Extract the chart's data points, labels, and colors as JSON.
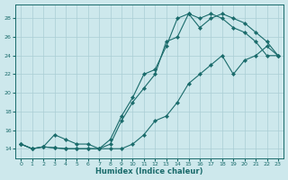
{
  "xlabel": "Humidex (Indice chaleur)",
  "xlim": [
    -0.5,
    23.5
  ],
  "ylim": [
    13.0,
    29.5
  ],
  "yticks": [
    14,
    16,
    18,
    20,
    22,
    24,
    26,
    28
  ],
  "xticks": [
    0,
    1,
    2,
    3,
    4,
    5,
    6,
    7,
    8,
    9,
    10,
    11,
    12,
    13,
    14,
    15,
    16,
    17,
    18,
    19,
    20,
    21,
    22,
    23
  ],
  "bg_color": "#cde8ec",
  "grid_color": "#aacdd4",
  "line_color": "#1a6b6b",
  "curve1_x": [
    0,
    1,
    2,
    3,
    4,
    5,
    6,
    7,
    8,
    9,
    10,
    11,
    12,
    13,
    14,
    15,
    16,
    17,
    18,
    19,
    20,
    21,
    22,
    23
  ],
  "curve1_y": [
    14.5,
    14.0,
    14.2,
    15.5,
    15.0,
    14.5,
    14.5,
    14.0,
    14.5,
    17.0,
    19.0,
    20.5,
    22.0,
    25.5,
    26.0,
    28.5,
    27.0,
    28.0,
    28.5,
    28.0,
    27.5,
    26.5,
    25.5,
    24.0
  ],
  "curve2_x": [
    0,
    1,
    2,
    3,
    4,
    5,
    6,
    7,
    8,
    9,
    10,
    11,
    12,
    13,
    14,
    15,
    16,
    17,
    18,
    19,
    20,
    21,
    22,
    23
  ],
  "curve2_y": [
    14.5,
    14.0,
    14.2,
    14.1,
    14.0,
    14.0,
    14.0,
    14.0,
    15.0,
    17.5,
    19.5,
    22.0,
    22.5,
    25.0,
    28.0,
    28.5,
    28.0,
    28.5,
    28.0,
    27.0,
    26.5,
    25.5,
    24.0,
    24.0
  ],
  "curve3_x": [
    0,
    1,
    2,
    3,
    4,
    5,
    6,
    7,
    8,
    9,
    10,
    11,
    12,
    13,
    14,
    15,
    16,
    17,
    18,
    19,
    20,
    21,
    22,
    23
  ],
  "curve3_y": [
    14.5,
    14.0,
    14.2,
    14.1,
    14.0,
    14.0,
    14.0,
    14.0,
    14.0,
    14.0,
    14.5,
    15.5,
    17.0,
    17.5,
    19.0,
    21.0,
    22.0,
    23.0,
    24.0,
    22.0,
    23.5,
    24.0,
    25.0,
    24.0
  ]
}
